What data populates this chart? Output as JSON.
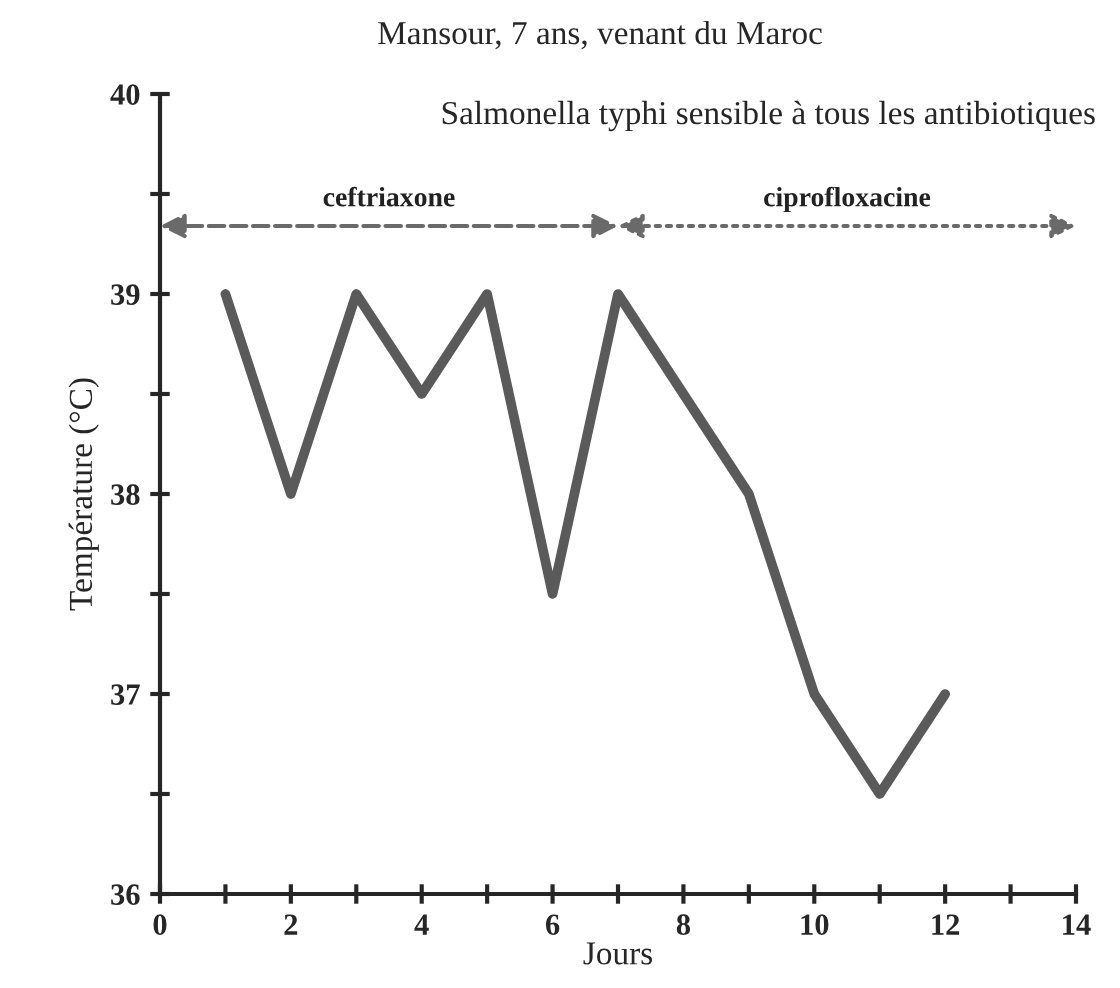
{
  "chart_data": {
    "type": "line",
    "title": "Mansour, 7 ans, venant du Maroc",
    "subtitle": "Salmonella typhi sensible à tous les antibiotiques",
    "xlabel": "Jours",
    "ylabel": "Température (°C)",
    "x": [
      1,
      2,
      3,
      4,
      5,
      6,
      7,
      8,
      9,
      10,
      11,
      12
    ],
    "series": [
      {
        "color": "#5a5a5a",
        "values": [
          39,
          38,
          39,
          38.5,
          39,
          37.5,
          39,
          38.5,
          38,
          37,
          36.5,
          37
        ]
      }
    ],
    "annotations": [
      "ceftriaxone",
      "ciprofloxacine"
    ],
    "xlim": [
      0,
      14
    ],
    "xticks": [
      0,
      {
        "value": 1,
        "label": null
      },
      2,
      {
        "value": 3,
        "label": null
      },
      4,
      {
        "value": 5,
        "label": null
      },
      6,
      {
        "value": 7,
        "label": null
      },
      8,
      {
        "value": 9,
        "label": null
      },
      10,
      {
        "value": 11,
        "label": null
      },
      12,
      {
        "value": 13,
        "label": null
      },
      14
    ],
    "ylim": [
      36,
      40
    ],
    "yticks": [
      36,
      {
        "value": 36.5,
        "label": null
      },
      37,
      {
        "value": 37.5,
        "label": null
      },
      38,
      {
        "value": 38.5,
        "label": null
      },
      39,
      {
        "value": 39.5,
        "label": null
      },
      40
    ],
    "grid": false,
    "marker": "none",
    "line_style": "solid"
  }
}
